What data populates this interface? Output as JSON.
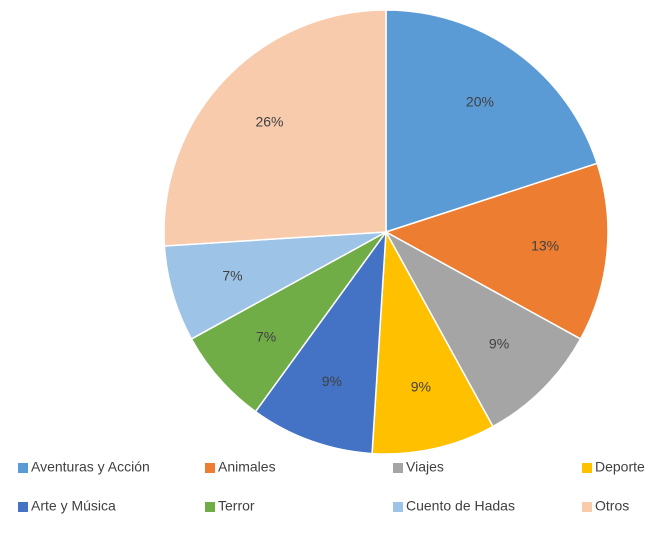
{
  "chart_data": {
    "type": "pie",
    "categories": [
      "Aventuras y Acción",
      "Animales",
      "Viajes",
      "Deporte",
      "Arte y Música",
      "Terror",
      "Cuento de Hadas",
      "Otros"
    ],
    "values": [
      20,
      13,
      9,
      9,
      9,
      7,
      7,
      26
    ],
    "value_labels": [
      "20%",
      "13%",
      "9%",
      "9%",
      "9%",
      "7%",
      "7%",
      "26%"
    ],
    "colors": [
      "#5b9bd5",
      "#ed7d31",
      "#a5a5a5",
      "#ffc000",
      "#4472c4",
      "#70ad47",
      "#9dc3e6",
      "#f8cbad"
    ],
    "legend": "bottom"
  }
}
